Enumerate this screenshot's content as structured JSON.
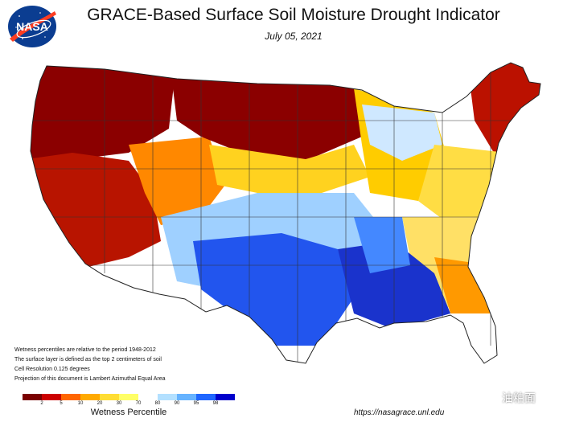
{
  "header": {
    "title": "GRACE-Based Surface Soil  Moisture Drought Indicator",
    "date": "July 05, 2021"
  },
  "logo": {
    "text": "NASA",
    "icon": "nasa-meatball-logo",
    "colors": {
      "blue": "#0b3d91",
      "red": "#fc3d21"
    }
  },
  "notes": [
    "Wetness percentiles are relative to the period 1948-2012",
    "The surface layer is defined as the top 2 centimeters of soil",
    "Cell Resolution 0.125 degrees",
    "Projection of this document is Lambert Azimuthal Equal Area"
  ],
  "legend": {
    "title": "Wetness Percentile",
    "colors": [
      "#7a0000",
      "#cc0000",
      "#ff6600",
      "#ffaa00",
      "#ffdd33",
      "#ffff66",
      "#ffffff",
      "#b3e0ff",
      "#66b3ff",
      "#1f66ff",
      "#0000cc"
    ],
    "ticks": [
      "2",
      "5",
      "10",
      "20",
      "30",
      "70",
      "80",
      "90",
      "95",
      "98"
    ]
  },
  "footer": {
    "url": "https://nasagrace.unl.edu"
  },
  "watermark": {
    "text": "油粕面",
    "icon": "wechat-icon"
  },
  "map_regions": [
    {
      "name": "pacific-northwest",
      "category": "extreme-dry",
      "color": "#8b0000"
    },
    {
      "name": "northern-plains",
      "category": "extreme-dry",
      "color": "#8b0000"
    },
    {
      "name": "california-great-basin",
      "category": "severe-dry",
      "color": "#cc1100"
    },
    {
      "name": "rockies",
      "category": "dry",
      "color": "#ff8800"
    },
    {
      "name": "new-england",
      "category": "severe-dry",
      "color": "#bb1100"
    },
    {
      "name": "midwest",
      "category": "moderate-dry",
      "color": "#ffcc00"
    },
    {
      "name": "texas-southern-plains",
      "category": "wet",
      "color": "#2255ee"
    },
    {
      "name": "gulf-coast",
      "category": "very-wet",
      "color": "#1a33cc"
    },
    {
      "name": "southeast",
      "category": "mixed",
      "color": "#ffdd44"
    },
    {
      "name": "great-lakes",
      "category": "near-normal",
      "color": "#cfe8ff"
    }
  ]
}
